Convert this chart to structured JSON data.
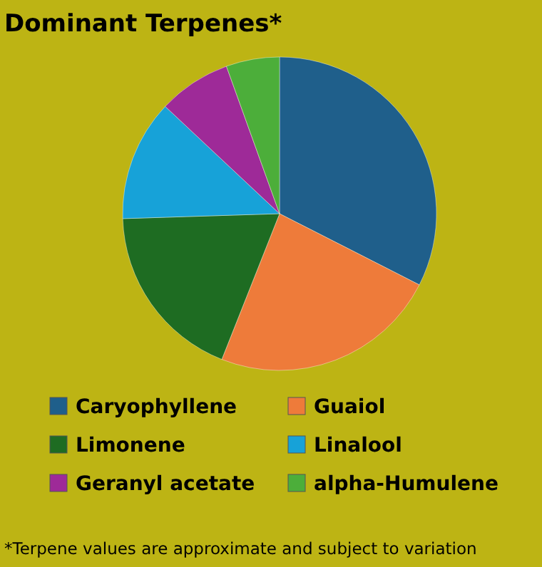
{
  "chart_data": {
    "type": "pie",
    "title": "Dominant Terpenes*",
    "categories": [
      "Caryophyllene",
      "Guaiol",
      "Limonene",
      "Linalool",
      "Geranyl acetate",
      "alpha-Humulene"
    ],
    "values": [
      32.5,
      23.5,
      18.5,
      12.5,
      7.5,
      5.5
    ],
    "colors": [
      "#1f5f8b",
      "#ee7b3a",
      "#1e6c22",
      "#17a2d8",
      "#9e2a98",
      "#4cae3a"
    ],
    "legend": "bottom",
    "annotations": [
      "*Terpene values are approximate and subject to variation"
    ]
  }
}
